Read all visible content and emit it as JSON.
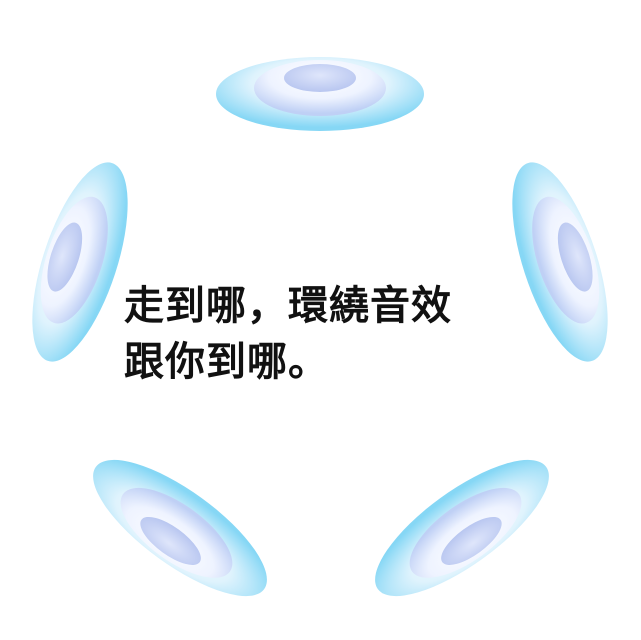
{
  "headline": {
    "line1": "走到哪，環繞音效",
    "line2": "跟你到哪。"
  },
  "colors": {
    "background": "#ffffff",
    "text": "#111111",
    "speaker_outer": "#8fdcf6",
    "speaker_mid": "#f4f8ff",
    "speaker_core": "#c6d3f6"
  },
  "icons": {
    "speaker": "surround-speaker-disc-icon"
  }
}
